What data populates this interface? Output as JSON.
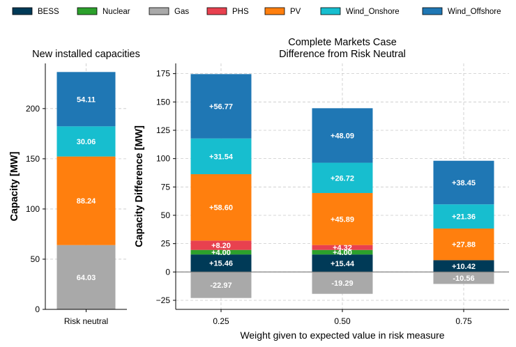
{
  "legend": {
    "items": [
      {
        "label": "BESS",
        "color": "#003a57"
      },
      {
        "label": "Nuclear",
        "color": "#2ca02c"
      },
      {
        "label": "Gas",
        "color": "#a9a9a9"
      },
      {
        "label": "PHS",
        "color": "#e8414f"
      },
      {
        "label": "PV",
        "color": "#ff7f0e"
      },
      {
        "label": "Wind_Onshore",
        "color": "#17becf"
      },
      {
        "label": "Wind_Offshore",
        "color": "#1f77b4"
      }
    ]
  },
  "chart_data": [
    {
      "type": "bar",
      "stacked": true,
      "title": "New installed capacities",
      "xlabel": "",
      "ylabel": "Capacity [MW]",
      "categories": [
        "Risk neutral"
      ],
      "ylim": [
        0,
        245
      ],
      "yticks": [
        0,
        50,
        100,
        150,
        200
      ],
      "ytick_labels": [
        "0",
        "50",
        "100",
        "150",
        "200"
      ],
      "grid": true,
      "series": [
        {
          "name": "Gas",
          "values": [
            64.03
          ],
          "labels": [
            "64.03"
          ]
        },
        {
          "name": "PV",
          "values": [
            88.24
          ],
          "labels": [
            "88.24"
          ]
        },
        {
          "name": "Wind_Onshore",
          "values": [
            30.06
          ],
          "labels": [
            "30.06"
          ]
        },
        {
          "name": "Wind_Offshore",
          "values": [
            54.11
          ],
          "labels": [
            "54.11"
          ]
        }
      ]
    },
    {
      "type": "bar",
      "stacked": true,
      "title": "Complete Markets Case\nDifference from Risk Neutral",
      "xlabel": "Weight given to expected value in risk measure",
      "ylabel": "Capacity Difference [MW]",
      "categories": [
        "0.25",
        "0.50",
        "0.75"
      ],
      "ylim": [
        -33,
        184
      ],
      "yticks": [
        -25,
        0,
        25,
        50,
        75,
        100,
        125,
        150,
        175
      ],
      "ytick_labels": [
        "−25",
        "0",
        "25",
        "50",
        "75",
        "100",
        "125",
        "150",
        "175"
      ],
      "grid": true,
      "zero_line": true,
      "series": [
        {
          "name": "BESS",
          "values": [
            15.46,
            15.44,
            10.42
          ],
          "labels": [
            "+15.46",
            "+15.44",
            "+10.42"
          ]
        },
        {
          "name": "Nuclear",
          "values": [
            4.0,
            4.0,
            0
          ],
          "labels": [
            "+4.00",
            "+4.00",
            ""
          ]
        },
        {
          "name": "Gas",
          "values": [
            -22.97,
            -19.29,
            -10.56
          ],
          "labels": [
            "-22.97",
            "-19.29",
            "-10.56"
          ]
        },
        {
          "name": "PHS",
          "values": [
            8.2,
            4.32,
            0
          ],
          "labels": [
            "+8.20",
            "+4.32",
            ""
          ]
        },
        {
          "name": "PV",
          "values": [
            58.6,
            45.89,
            27.88
          ],
          "labels": [
            "+58.60",
            "+45.89",
            "+27.88"
          ]
        },
        {
          "name": "Wind_Onshore",
          "values": [
            31.54,
            26.72,
            21.36
          ],
          "labels": [
            "+31.54",
            "+26.72",
            "+21.36"
          ]
        },
        {
          "name": "Wind_Offshore",
          "values": [
            56.77,
            48.09,
            38.45
          ],
          "labels": [
            "+56.77",
            "+48.09",
            "+38.45"
          ]
        }
      ]
    }
  ]
}
